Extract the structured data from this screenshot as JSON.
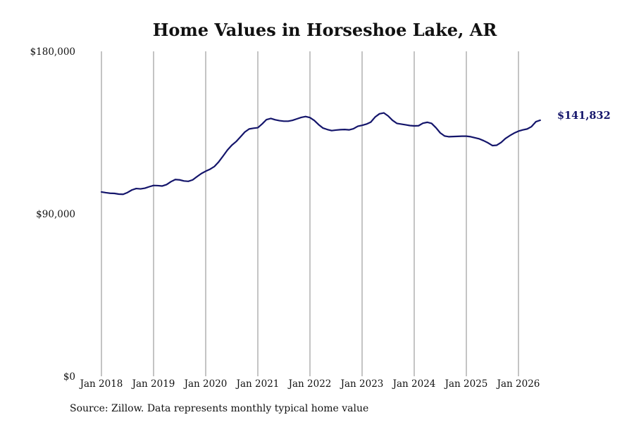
{
  "chart_data": {
    "type": "line",
    "title": "Home Values in Horseshoe Lake, AR",
    "xlabel": "",
    "ylabel": "",
    "x_start": "2018-01",
    "frequency": "monthly",
    "ylim": [
      0,
      180000
    ],
    "yticks": [
      {
        "value": 0,
        "label": "$0"
      },
      {
        "value": 90000,
        "label": "$90,000"
      },
      {
        "value": 180000,
        "label": "$180,000"
      }
    ],
    "xticks": [
      "Jan 2018",
      "Jan 2019",
      "Jan 2020",
      "Jan 2021",
      "Jan 2022",
      "Jan 2023",
      "Jan 2024",
      "Jan 2025",
      "Jan 2026"
    ],
    "grid": "vertical at each January",
    "line_color": "#14156b",
    "end_label": "$141,832",
    "series": [
      {
        "values": [
          102100,
          101700,
          101400,
          101300,
          100900,
          100800,
          101800,
          103200,
          104000,
          103800,
          104200,
          105000,
          105700,
          105600,
          105400,
          106200,
          107800,
          109000,
          108800,
          108200,
          108000,
          108800,
          110600,
          112300,
          113600,
          114700,
          116200,
          118800,
          122000,
          125300,
          128000,
          130000,
          132600,
          135300,
          137000,
          137400,
          137700,
          139800,
          142200,
          142800,
          142100,
          141600,
          141300,
          141300,
          141800,
          142600,
          143400,
          143900,
          143300,
          141700,
          139400,
          137500,
          136700,
          136100,
          136400,
          136600,
          136700,
          136500,
          137100,
          138500,
          139000,
          139700,
          140800,
          143600,
          145400,
          145900,
          144200,
          141800,
          140100,
          139700,
          139300,
          138900,
          138700,
          138800,
          140200,
          140700,
          140100,
          137700,
          134800,
          133100,
          132700,
          132800,
          132900,
          133000,
          133000,
          132700,
          132100,
          131500,
          130500,
          129300,
          127800,
          128000,
          129500,
          131700,
          133300,
          134700,
          135800,
          136500,
          137000,
          138300,
          141000,
          141832
        ]
      }
    ]
  },
  "source_text": "Source: Zillow. Data represents monthly typical home value"
}
